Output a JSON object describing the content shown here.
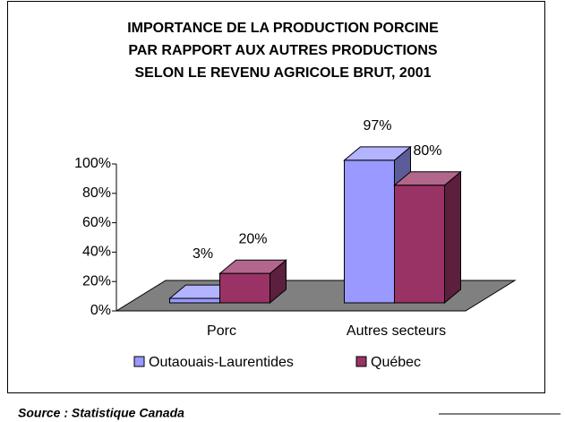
{
  "chart_data": {
    "type": "bar3d",
    "title": [
      "IMPORTANCE DE LA PRODUCTION  PORCINE",
      "PAR RAPPORT AUX AUTRES PRODUCTIONS",
      "SELON LE REVENU AGRICOLE BRUT, 2001"
    ],
    "categories": [
      "Porc",
      "Autres secteurs"
    ],
    "series": [
      {
        "name": "Outaouais-Laurentides",
        "color": "#9999ff",
        "values": [
          3,
          97
        ],
        "value_labels": [
          "3%",
          "97%"
        ]
      },
      {
        "name": "Québec",
        "color": "#993366",
        "values": [
          20,
          80
        ],
        "value_labels": [
          "20%",
          "80%"
        ]
      }
    ],
    "ylim": [
      0,
      100
    ],
    "yticks": [
      {
        "value": 0,
        "label": "0%"
      },
      {
        "value": 20,
        "label": "20%"
      },
      {
        "value": 40,
        "label": "40%"
      },
      {
        "value": 60,
        "label": "60%"
      },
      {
        "value": 80,
        "label": "80%"
      },
      {
        "value": 100,
        "label": "100%"
      }
    ],
    "legend": "bottom",
    "source": "Source :  Statistique Canada"
  }
}
